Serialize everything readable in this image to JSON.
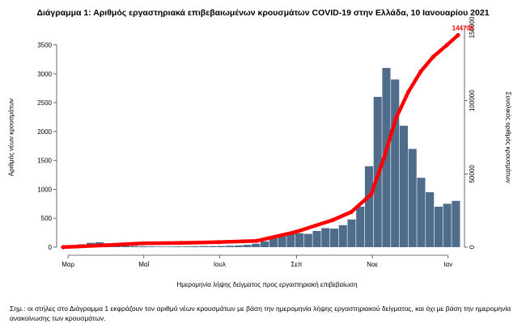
{
  "chart_data": {
    "type": "bar",
    "title": "Διάγραμμα 1: Αριθμός εργαστηριακά επιβεβαιωμένων κρουσμάτων COVID-19 στην Ελλάδα, 10 Ιανουαρίου 2021",
    "xlabel": "Ημερομηνία λήψης δείγματος προς εργαστηριακή επιβεβαίωση",
    "ylabel": "Αριθμός νέων κρουσμάτων",
    "y2label": "Συνολικός αριθμός κρουσμάτων",
    "ylim": [
      0,
      3800
    ],
    "y2lim": [
      0,
      150000
    ],
    "yticks": [
      0,
      500,
      1000,
      1500,
      2000,
      2500,
      3000,
      3500
    ],
    "y2ticks": [
      0,
      50000,
      100000,
      150000
    ],
    "y2tick_labels": [
      "0",
      "50000",
      "100000",
      "150000"
    ],
    "x_date_range": [
      "2020-02-26",
      "2021-01-09"
    ],
    "xticks": [
      {
        "date": "2020-03-01",
        "label": "Μαρ"
      },
      {
        "date": "2020-05-01",
        "label": "Μαΐ"
      },
      {
        "date": "2020-07-01",
        "label": "Ιουλ"
      },
      {
        "date": "2020-09-01",
        "label": "Σεπ"
      },
      {
        "date": "2020-11-01",
        "label": "Νοε"
      },
      {
        "date": "2021-01-01",
        "label": "Ιαν"
      }
    ],
    "series": [
      {
        "kind": "bar",
        "color": "#4f6d8a",
        "weekly_daily_averages": [
          {
            "week_start": "2020-02-24",
            "value": 3
          },
          {
            "week_start": "2020-03-02",
            "value": 12
          },
          {
            "week_start": "2020-03-09",
            "value": 50
          },
          {
            "week_start": "2020-03-16",
            "value": 75
          },
          {
            "week_start": "2020-03-23",
            "value": 85
          },
          {
            "week_start": "2020-03-30",
            "value": 60
          },
          {
            "week_start": "2020-04-06",
            "value": 35
          },
          {
            "week_start": "2020-04-13",
            "value": 25
          },
          {
            "week_start": "2020-04-20",
            "value": 20
          },
          {
            "week_start": "2020-04-27",
            "value": 15
          },
          {
            "week_start": "2020-05-04",
            "value": 12
          },
          {
            "week_start": "2020-05-11",
            "value": 10
          },
          {
            "week_start": "2020-05-18",
            "value": 10
          },
          {
            "week_start": "2020-05-25",
            "value": 12
          },
          {
            "week_start": "2020-06-01",
            "value": 12
          },
          {
            "week_start": "2020-06-08",
            "value": 15
          },
          {
            "week_start": "2020-06-15",
            "value": 18
          },
          {
            "week_start": "2020-06-22",
            "value": 18
          },
          {
            "week_start": "2020-06-29",
            "value": 20
          },
          {
            "week_start": "2020-07-06",
            "value": 25
          },
          {
            "week_start": "2020-07-13",
            "value": 30
          },
          {
            "week_start": "2020-07-20",
            "value": 40
          },
          {
            "week_start": "2020-07-27",
            "value": 60
          },
          {
            "week_start": "2020-08-03",
            "value": 100
          },
          {
            "week_start": "2020-08-10",
            "value": 160
          },
          {
            "week_start": "2020-08-17",
            "value": 210
          },
          {
            "week_start": "2020-08-24",
            "value": 240
          },
          {
            "week_start": "2020-08-31",
            "value": 240
          },
          {
            "week_start": "2020-09-07",
            "value": 230
          },
          {
            "week_start": "2020-09-14",
            "value": 280
          },
          {
            "week_start": "2020-09-21",
            "value": 330
          },
          {
            "week_start": "2020-09-28",
            "value": 320
          },
          {
            "week_start": "2020-10-05",
            "value": 380
          },
          {
            "week_start": "2020-10-12",
            "value": 480
          },
          {
            "week_start": "2020-10-19",
            "value": 700
          },
          {
            "week_start": "2020-10-26",
            "value": 1400
          },
          {
            "week_start": "2020-11-02",
            "value": 2600
          },
          {
            "week_start": "2020-11-09",
            "value": 3100
          },
          {
            "week_start": "2020-11-16",
            "value": 2900
          },
          {
            "week_start": "2020-11-23",
            "value": 2100
          },
          {
            "week_start": "2020-11-30",
            "value": 1700
          },
          {
            "week_start": "2020-12-07",
            "value": 1200
          },
          {
            "week_start": "2020-12-14",
            "value": 950
          },
          {
            "week_start": "2020-12-21",
            "value": 700
          },
          {
            "week_start": "2020-12-28",
            "value": 750
          },
          {
            "week_start": "2021-01-04",
            "value": 800
          }
        ]
      },
      {
        "kind": "line",
        "axis": "right",
        "color": "#ff0000",
        "points": [
          {
            "date": "2020-02-26",
            "value": 0
          },
          {
            "date": "2020-03-31",
            "value": 1300
          },
          {
            "date": "2020-04-30",
            "value": 2600
          },
          {
            "date": "2020-05-31",
            "value": 2950
          },
          {
            "date": "2020-06-30",
            "value": 3400
          },
          {
            "date": "2020-07-31",
            "value": 4300
          },
          {
            "date": "2020-08-31",
            "value": 10300
          },
          {
            "date": "2020-09-30",
            "value": 18500
          },
          {
            "date": "2020-10-15",
            "value": 24000
          },
          {
            "date": "2020-10-31",
            "value": 36000
          },
          {
            "date": "2020-11-10",
            "value": 60000
          },
          {
            "date": "2020-11-20",
            "value": 88000
          },
          {
            "date": "2020-11-30",
            "value": 106000
          },
          {
            "date": "2020-12-10",
            "value": 120000
          },
          {
            "date": "2020-12-20",
            "value": 130000
          },
          {
            "date": "2020-12-31",
            "value": 138000
          },
          {
            "date": "2021-01-09",
            "value": 144738
          }
        ]
      }
    ],
    "end_label": "144738"
  },
  "note": "Σημ.: οι στήλες στο Διάγραμμα 1 εκφράζουν τον αριθμό νέων κρουσμάτων με βάση την ημερομηνία λήψης εργαστηριακού δείγματος, και όχι με βάση την ημερομηνία ανακοίνωσης των κρουσμάτων."
}
